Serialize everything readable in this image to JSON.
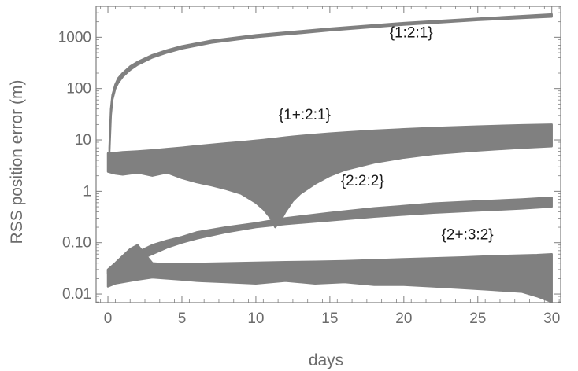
{
  "chart_data": {
    "type": "area",
    "title": "",
    "xlabel": "days",
    "ylabel": "RSS position error (m)",
    "xlim": [
      -0.8,
      30.6
    ],
    "ylim": [
      0.0068,
      4000
    ],
    "y_scale": "log",
    "grid": false,
    "legend": "none",
    "x_ticks": [
      0,
      5,
      10,
      15,
      20,
      25,
      30
    ],
    "x_tick_labels": [
      "0",
      "5",
      "10",
      "15",
      "20",
      "25",
      "30"
    ],
    "y_ticks": [
      0.01,
      0.1,
      1,
      10,
      100,
      1000
    ],
    "y_tick_labels": [
      "0.01",
      "0.10",
      "1",
      "10",
      "100",
      "1000"
    ],
    "colors": {
      "series": "#808080",
      "axis": "#7f7f7f",
      "text": "#6b6b6b",
      "label": "#1a1a1a"
    },
    "series": [
      {
        "name": "{1:2:1}",
        "label_at": [
          20.5,
          1000
        ],
        "x": [
          0.1,
          0.2,
          0.3,
          0.5,
          0.7,
          1,
          1.5,
          2,
          3,
          4,
          5,
          7,
          10,
          15,
          20,
          25,
          30
        ],
        "lower": [
          5.5,
          30,
          60,
          100,
          130,
          170,
          230,
          290,
          400,
          500,
          600,
          780,
          1000,
          1350,
          1750,
          2150,
          2500
        ],
        "upper": [
          7,
          40,
          75,
          120,
          160,
          200,
          270,
          330,
          450,
          560,
          670,
          860,
          1100,
          1480,
          1900,
          2320,
          2800
        ]
      },
      {
        "name": "{1+:2:1}",
        "label_at": [
          13.3,
          25
        ],
        "x": [
          0,
          0.5,
          1,
          2,
          3,
          4,
          5,
          6,
          7,
          8,
          9,
          10,
          10.5,
          11,
          11.3,
          11.6,
          12,
          12.5,
          13,
          14,
          15,
          16,
          18,
          20,
          22,
          25,
          28,
          30
        ],
        "lower": [
          2.4,
          2.2,
          2.1,
          2.3,
          2.0,
          2.3,
          1.8,
          1.5,
          1.3,
          1.1,
          0.9,
          0.6,
          0.45,
          0.3,
          0.2,
          0.25,
          0.4,
          0.65,
          0.9,
          1.4,
          2.0,
          2.6,
          3.6,
          4.5,
          5.3,
          6.2,
          7.0,
          7.5
        ],
        "upper": [
          5.5,
          5.6,
          5.8,
          6.0,
          6.3,
          6.7,
          7.1,
          7.6,
          8.1,
          8.6,
          9.1,
          9.7,
          10.0,
          10.4,
          10.6,
          10.9,
          11.2,
          11.6,
          12.0,
          12.7,
          13.4,
          14.0,
          15.2,
          16.2,
          17.2,
          18.4,
          19.5,
          20.0
        ]
      },
      {
        "name": "{2:2:2}",
        "label_at": [
          17.2,
          1.3
        ],
        "x": [
          0,
          1,
          2,
          3,
          4,
          5,
          6,
          8,
          10,
          12,
          15,
          18,
          20,
          22,
          25,
          28,
          30
        ],
        "lower": [
          0.025,
          0.035,
          0.045,
          0.06,
          0.08,
          0.1,
          0.12,
          0.16,
          0.2,
          0.23,
          0.27,
          0.32,
          0.35,
          0.38,
          0.42,
          0.46,
          0.5
        ],
        "upper": [
          0.03,
          0.045,
          0.065,
          0.09,
          0.11,
          0.13,
          0.16,
          0.2,
          0.24,
          0.3,
          0.38,
          0.47,
          0.52,
          0.58,
          0.64,
          0.7,
          0.76
        ]
      },
      {
        "name": "{2+:3:2}",
        "label_at": [
          24.3,
          0.115
        ],
        "x": [
          0,
          0.5,
          1,
          1.5,
          2,
          2.5,
          3,
          4,
          5,
          6,
          8,
          10,
          12,
          14,
          16,
          18,
          20,
          22,
          24,
          26,
          28,
          29,
          30
        ],
        "lower": [
          0.014,
          0.016,
          0.017,
          0.018,
          0.019,
          0.02,
          0.021,
          0.02,
          0.019,
          0.018,
          0.017,
          0.016,
          0.018,
          0.016,
          0.017,
          0.015,
          0.015,
          0.014,
          0.013,
          0.012,
          0.011,
          0.009,
          0.007
        ],
        "upper": [
          0.03,
          0.04,
          0.055,
          0.075,
          0.09,
          0.06,
          0.04,
          0.038,
          0.038,
          0.039,
          0.04,
          0.041,
          0.042,
          0.043,
          0.044,
          0.046,
          0.048,
          0.05,
          0.052,
          0.055,
          0.057,
          0.058,
          0.06
        ]
      }
    ]
  }
}
